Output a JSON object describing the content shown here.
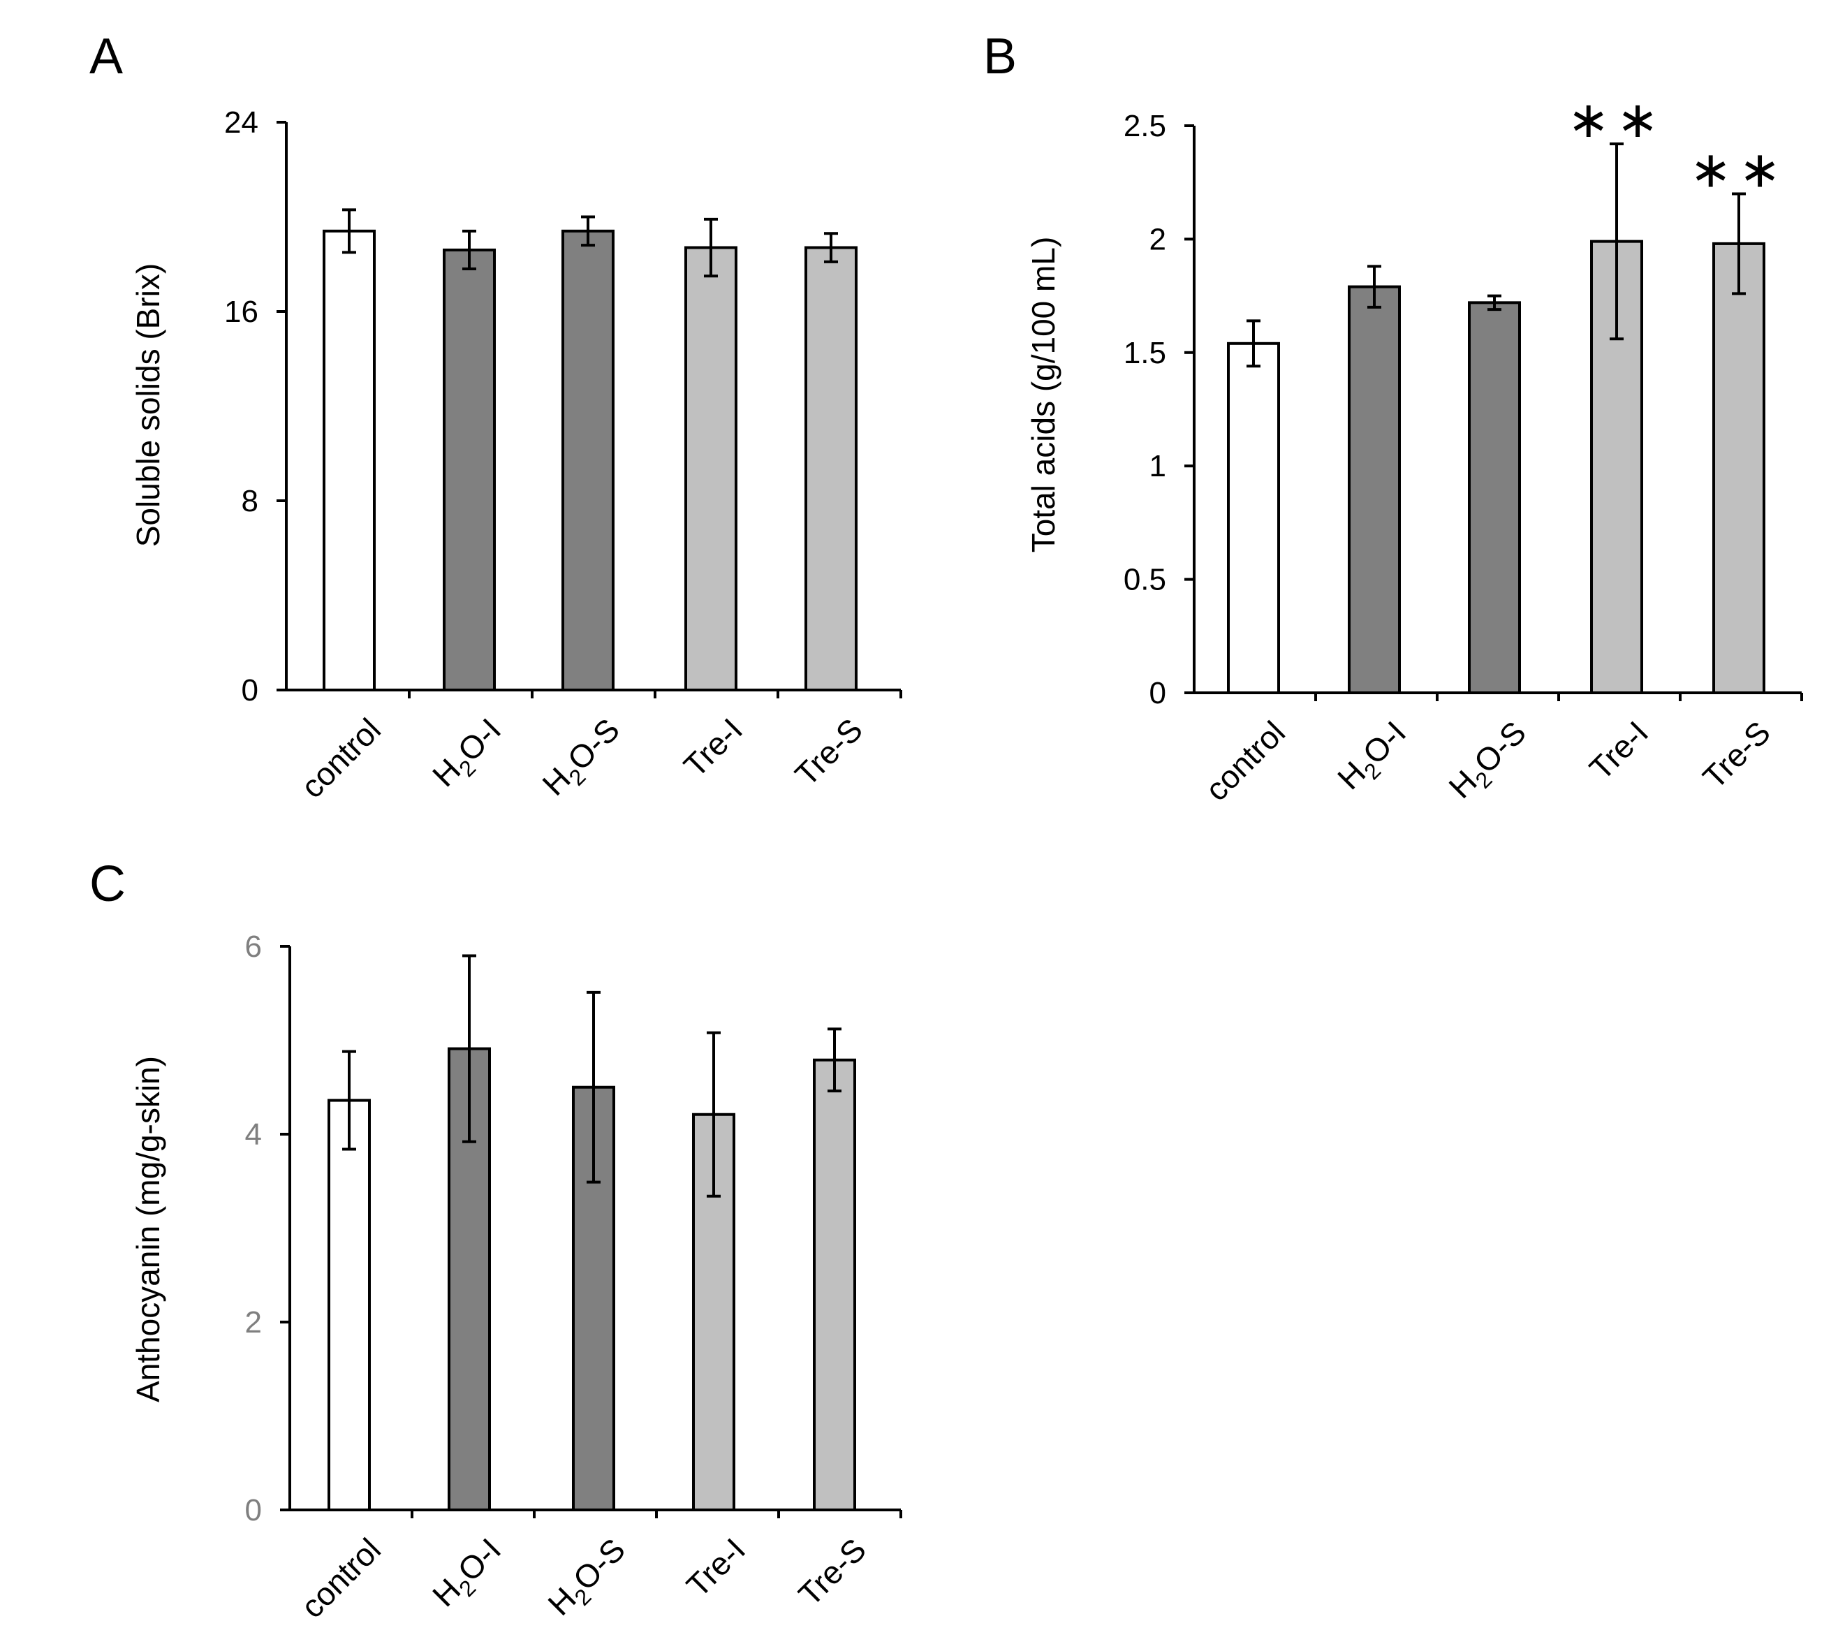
{
  "colors": {
    "control": "#ffffff",
    "h2o": "#808080",
    "tre": "#c0c0c0",
    "axis": "#000000",
    "tick_label_gray": "#7f7f7f"
  },
  "chart_data": [
    {
      "panel": "A",
      "type": "bar",
      "title": "",
      "xlabel": "",
      "ylabel": "Soluble solids (Brix)",
      "ylim": [
        0,
        24
      ],
      "yticks": [
        0,
        8,
        16,
        24
      ],
      "ytick_labels": [
        "0",
        "8",
        "16",
        "24"
      ],
      "categories": [
        {
          "base": "control",
          "sub": "",
          "rest": ""
        },
        {
          "base": "H",
          "sub": "2",
          "rest": "O-I"
        },
        {
          "base": "H",
          "sub": "2",
          "rest": "O-S"
        },
        {
          "base": "Tre-I",
          "sub": "",
          "rest": ""
        },
        {
          "base": "Tre-S",
          "sub": "",
          "rest": ""
        }
      ],
      "values": [
        19.4,
        18.6,
        19.4,
        18.7,
        18.7
      ],
      "errors": [
        0.9,
        0.8,
        0.6,
        1.2,
        0.6
      ],
      "bar_color_keys": [
        "control",
        "h2o",
        "h2o",
        "tre",
        "tre"
      ],
      "annotations": [
        "",
        "",
        "",
        "",
        ""
      ]
    },
    {
      "panel": "B",
      "type": "bar",
      "title": "",
      "xlabel": "",
      "ylabel": "Total acids (g/100 mL)",
      "ylim": [
        0,
        2.5
      ],
      "yticks": [
        0,
        0.5,
        1,
        1.5,
        2,
        2.5
      ],
      "ytick_labels": [
        "0",
        "0.5",
        "1",
        "1.5",
        "2",
        "2.5"
      ],
      "categories": [
        {
          "base": "control",
          "sub": "",
          "rest": ""
        },
        {
          "base": "H",
          "sub": "2",
          "rest": "O-I"
        },
        {
          "base": "H",
          "sub": "2",
          "rest": "O-S"
        },
        {
          "base": "Tre-I",
          "sub": "",
          "rest": ""
        },
        {
          "base": "Tre-S",
          "sub": "",
          "rest": ""
        }
      ],
      "values": [
        1.54,
        1.79,
        1.72,
        1.99,
        1.98
      ],
      "errors": [
        0.1,
        0.09,
        0.03,
        0.43,
        0.22
      ],
      "bar_color_keys": [
        "control",
        "h2o",
        "h2o",
        "tre",
        "tre"
      ],
      "annotations": [
        "",
        "",
        "",
        "**",
        "**"
      ]
    },
    {
      "panel": "C",
      "type": "bar",
      "title": "",
      "xlabel": "",
      "ylabel": "Anthocyanin (mg/g-skin)",
      "ylim": [
        0,
        6
      ],
      "yticks": [
        0,
        2,
        4,
        6
      ],
      "ytick_labels": [
        "0",
        "2",
        "4",
        "6"
      ],
      "categories": [
        {
          "base": "control",
          "sub": "",
          "rest": ""
        },
        {
          "base": "H",
          "sub": "2",
          "rest": "O-I"
        },
        {
          "base": "H",
          "sub": "2",
          "rest": "O-S"
        },
        {
          "base": "Tre-I",
          "sub": "",
          "rest": ""
        },
        {
          "base": "Tre-S",
          "sub": "",
          "rest": ""
        }
      ],
      "values": [
        4.36,
        4.91,
        4.5,
        4.21,
        4.79
      ],
      "errors": [
        0.52,
        0.99,
        1.01,
        0.87,
        0.33
      ],
      "bar_color_keys": [
        "control",
        "h2o",
        "h2o",
        "tre",
        "tre"
      ],
      "annotations": [
        "",
        "",
        "",
        "",
        ""
      ]
    }
  ]
}
